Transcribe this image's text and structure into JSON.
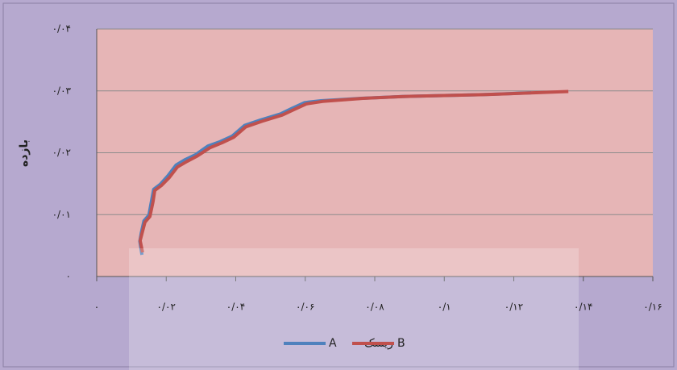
{
  "chart_data": {
    "type": "line",
    "y_label": "بازده",
    "x_label": "ریسک",
    "xlim": [
      0,
      0.16
    ],
    "xticks": [
      {
        "value": 0,
        "label": "۰"
      },
      {
        "value": 0.02,
        "label": "۰/۰۲"
      },
      {
        "value": 0.04,
        "label": "۰/۰۴"
      },
      {
        "value": 0.06,
        "label": "۰/۰۶"
      },
      {
        "value": 0.08,
        "label": "۰/۰۸"
      },
      {
        "value": 0.1,
        "label": "۰/۱"
      },
      {
        "value": 0.12,
        "label": "۰/۱۲"
      },
      {
        "value": 0.14,
        "label": "۰/۱۴"
      },
      {
        "value": 0.16,
        "label": "۰/۱۶"
      }
    ],
    "ylim": [
      0,
      0.04
    ],
    "yticks": [
      {
        "value": 0,
        "label": "۰"
      },
      {
        "value": 0.01,
        "label": "۰/۰۱"
      },
      {
        "value": 0.02,
        "label": "۰/۰۲"
      },
      {
        "value": 0.03,
        "label": "۰/۰۳"
      },
      {
        "value": 0.04,
        "label": "۰/۰۴"
      }
    ],
    "grid": true,
    "legend": "bottom",
    "series": [
      {
        "name": "A",
        "color": "#4f81bd",
        "x": [
          0.013,
          0.0124,
          0.0128,
          0.0136,
          0.015,
          0.0158,
          0.0164,
          0.0183,
          0.0205,
          0.0228,
          0.0255,
          0.0285,
          0.032,
          0.0355,
          0.039,
          0.0425,
          0.0472,
          0.053,
          0.0563,
          0.0598,
          0.0645,
          0.076,
          0.088,
          0.111,
          0.125
        ],
        "values": [
          0.0035,
          0.0057,
          0.007,
          0.009,
          0.0099,
          0.0123,
          0.0141,
          0.0149,
          0.0163,
          0.018,
          0.0189,
          0.0197,
          0.0211,
          0.0218,
          0.0227,
          0.0244,
          0.0253,
          0.0263,
          0.0272,
          0.0281,
          0.0284,
          0.0288,
          0.0291,
          0.0294,
          0.0297
        ]
      },
      {
        "name": "B",
        "color": "#c0504d",
        "x": [
          0.0132,
          0.0125,
          0.013,
          0.0139,
          0.0153,
          0.0162,
          0.0167,
          0.0186,
          0.0209,
          0.0232,
          0.026,
          0.029,
          0.0325,
          0.036,
          0.0394,
          0.0429,
          0.0476,
          0.0534,
          0.0568,
          0.0603,
          0.065,
          0.0766,
          0.0882,
          0.1114,
          0.1357
        ],
        "values": [
          0.0039,
          0.0058,
          0.0069,
          0.0088,
          0.0097,
          0.0121,
          0.0139,
          0.0147,
          0.016,
          0.0177,
          0.0186,
          0.0195,
          0.0208,
          0.0216,
          0.0225,
          0.0242,
          0.0251,
          0.0261,
          0.027,
          0.0279,
          0.0283,
          0.0288,
          0.0291,
          0.0294,
          0.0299
        ]
      }
    ]
  }
}
